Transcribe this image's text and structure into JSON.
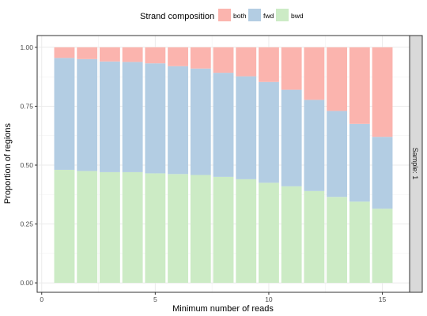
{
  "chart_data": {
    "type": "bar",
    "stacked": true,
    "x": [
      1,
      2,
      3,
      4,
      5,
      6,
      7,
      8,
      9,
      10,
      11,
      12,
      13,
      14,
      15
    ],
    "series": [
      {
        "name": "bwd",
        "color": "#ccebc5",
        "values": [
          0.48,
          0.475,
          0.47,
          0.47,
          0.465,
          0.462,
          0.458,
          0.45,
          0.44,
          0.425,
          0.41,
          0.39,
          0.365,
          0.345,
          0.315
        ]
      },
      {
        "name": "fwd",
        "color": "#b3cde3",
        "values": [
          0.475,
          0.475,
          0.47,
          0.468,
          0.467,
          0.458,
          0.452,
          0.442,
          0.437,
          0.428,
          0.41,
          0.387,
          0.365,
          0.33,
          0.305
        ]
      },
      {
        "name": "both",
        "color": "#fbb4ae",
        "values": [
          0.045,
          0.05,
          0.06,
          0.062,
          0.068,
          0.08,
          0.09,
          0.108,
          0.123,
          0.147,
          0.18,
          0.223,
          0.27,
          0.325,
          0.38
        ]
      }
    ],
    "xlabel": "Minimum number of reads",
    "ylabel": "Proportion of regions",
    "xticks": [
      0,
      5,
      10,
      15
    ],
    "yticks": [
      "0.00",
      "0.25",
      "0.50",
      "0.75",
      "1.00"
    ],
    "xlim": [
      -0.2,
      16.2
    ],
    "ylim": [
      -0.04,
      1.05
    ],
    "grid": true,
    "legend": {
      "title": "Strand composition",
      "position": "top",
      "entries": [
        "both",
        "fwd",
        "bwd"
      ]
    },
    "facet_label": "Sample: 1"
  }
}
